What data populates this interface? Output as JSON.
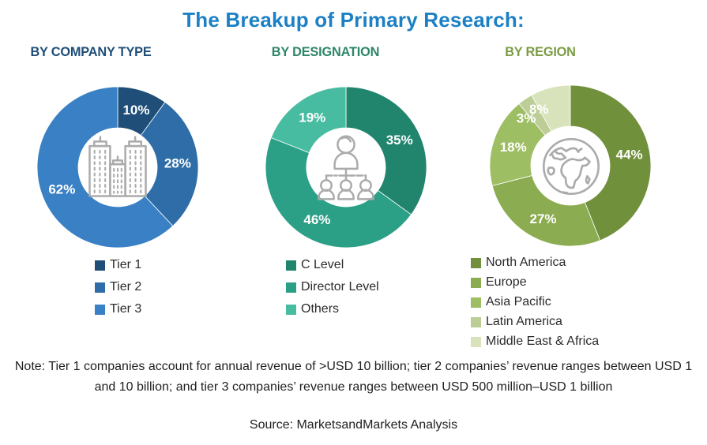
{
  "title": "The Breakup of Primary Research:",
  "title_color": "#1B80C5",
  "chart_data": [
    {
      "type": "pie",
      "variant": "donut",
      "section": "BY COMPANY TYPE",
      "section_color": "#1F4E79",
      "categories": [
        "Tier 1",
        "Tier 2",
        "Tier 3"
      ],
      "values": [
        10,
        28,
        62
      ],
      "labels": [
        "10%",
        "28%",
        "62%"
      ],
      "colors": [
        "#1F4E79",
        "#2E6DA8",
        "#3A80C4"
      ],
      "start_angle": 0,
      "direction": "clockwise",
      "legend_position": "below",
      "center_icon": "buildings-icon"
    },
    {
      "type": "pie",
      "variant": "donut",
      "section": "BY DESIGNATION",
      "section_color": "#2E8668",
      "categories": [
        "C Level",
        "Director Level",
        "Others"
      ],
      "values": [
        35,
        46,
        19
      ],
      "labels": [
        "35%",
        "46%",
        "19%"
      ],
      "colors": [
        "#21856E",
        "#2CA087",
        "#48BCA0"
      ],
      "start_angle": 0,
      "direction": "clockwise",
      "legend_position": "below",
      "center_icon": "org-chart-icon"
    },
    {
      "type": "pie",
      "variant": "donut",
      "section": "BY REGION",
      "section_color": "#7B9C43",
      "categories": [
        "North America",
        "Europe",
        "Asia Pacific",
        "Latin America",
        "Middle East & Africa"
      ],
      "values": [
        44,
        27,
        18,
        3,
        8
      ],
      "labels": [
        "44%",
        "27%",
        "18%",
        "3%",
        "8%"
      ],
      "colors": [
        "#70903C",
        "#8BAC50",
        "#9DBE62",
        "#BCCD95",
        "#D8E3BB"
      ],
      "start_angle": 0,
      "direction": "clockwise",
      "legend_position": "below",
      "center_icon": "globe-icon",
      "label_angles": [
        79.2,
        207,
        288,
        317,
        331
      ],
      "label_radius_small": 82
    }
  ],
  "note_text": "Note: Tier 1 companies account for annual revenue of >USD 10 billion; tier 2 companies’ revenue ranges between USD 1 and 10 billion; and tier 3 companies’ revenue ranges between USD 500 million–USD 1 billion",
  "source_text": "Source: MarketsandMarkets Analysis",
  "icon_color": "#ABABAB"
}
